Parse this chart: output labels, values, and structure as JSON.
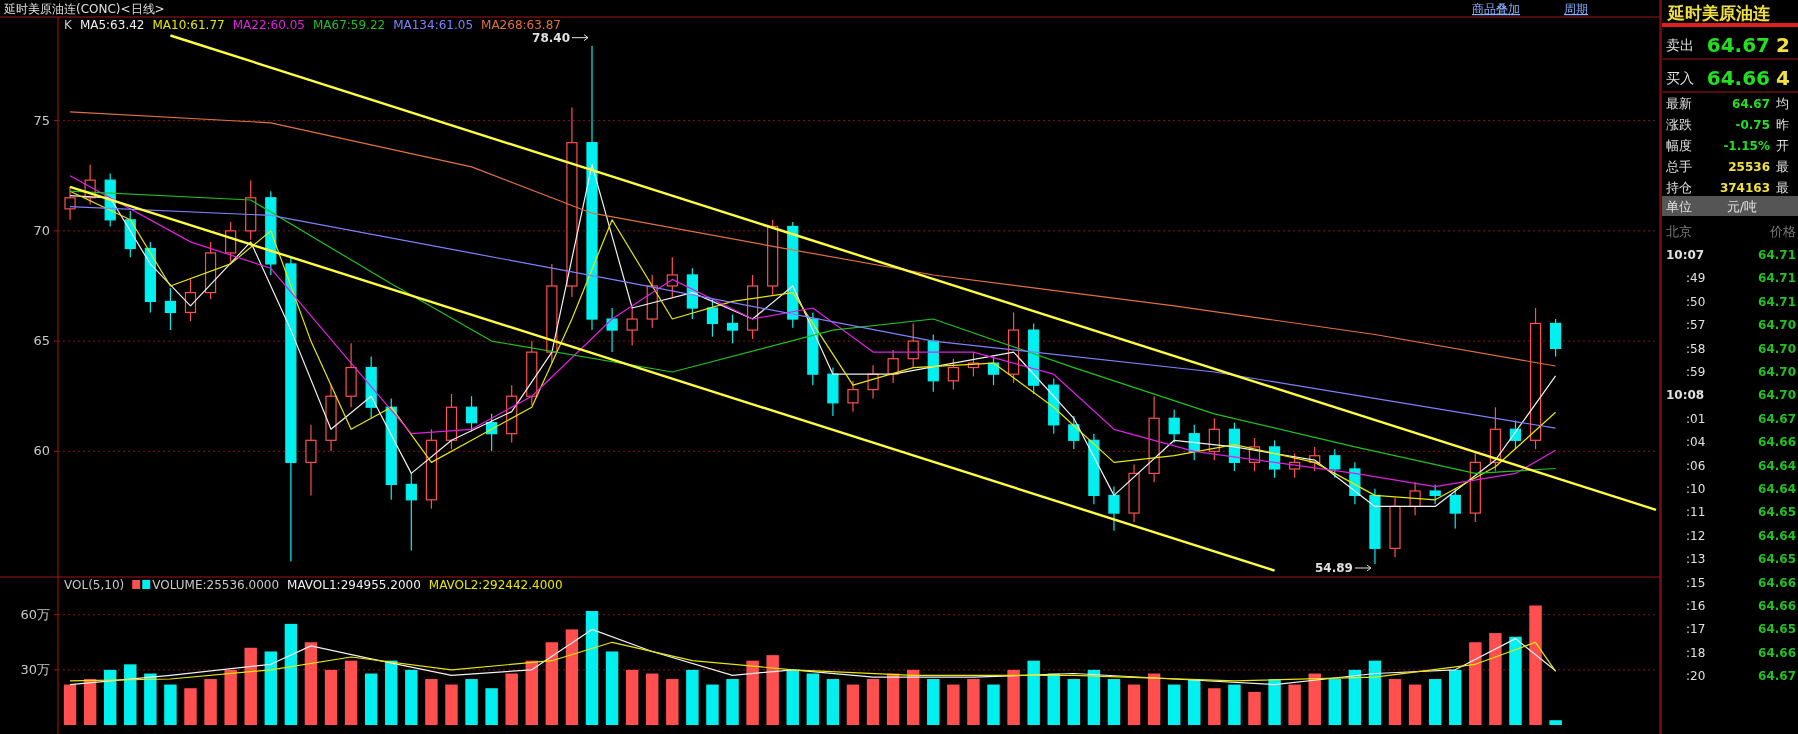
{
  "chart_data": [
    {
      "type": "candlestick",
      "title": "延时美原油连(CONC)<日线>",
      "legend_title": "K",
      "legend": "top left",
      "grid": "y",
      "categories": [
        null,
        null,
        null,
        null,
        null,
        null,
        null,
        null,
        null,
        null,
        null,
        null,
        null,
        null,
        null,
        null,
        null,
        null,
        null,
        null,
        null,
        null,
        null,
        null,
        null,
        null,
        null,
        null,
        null,
        null,
        null,
        null,
        null,
        null,
        null,
        null,
        null,
        null,
        null,
        null,
        null,
        null,
        null,
        null,
        null,
        null,
        null,
        null,
        null,
        null,
        null,
        null,
        null,
        null,
        null,
        null,
        null,
        null,
        null,
        null,
        null,
        null,
        null,
        null,
        null,
        null,
        null,
        null,
        null,
        null,
        null,
        null,
        null,
        null,
        null,
        null,
        null,
        null,
        null,
        null
      ],
      "ohlc": [
        [
          71.0,
          72.0,
          70.5,
          71.5
        ],
        [
          71.5,
          73.0,
          71.2,
          72.3
        ],
        [
          72.3,
          72.6,
          70.2,
          70.5
        ],
        [
          70.5,
          70.9,
          68.8,
          69.2
        ],
        [
          69.2,
          69.5,
          66.3,
          66.8
        ],
        [
          66.8,
          67.4,
          65.5,
          66.3
        ],
        [
          66.3,
          67.8,
          65.9,
          67.2
        ],
        [
          67.2,
          69.5,
          66.9,
          69.0
        ],
        [
          69.0,
          70.4,
          68.6,
          70.0
        ],
        [
          70.0,
          72.3,
          69.6,
          71.5
        ],
        [
          71.5,
          71.8,
          68.0,
          68.5
        ],
        [
          68.5,
          68.8,
          55.0,
          59.5
        ],
        [
          59.5,
          61.2,
          58.0,
          60.5
        ],
        [
          60.5,
          63.0,
          60.0,
          62.5
        ],
        [
          62.5,
          64.9,
          62.0,
          63.8
        ],
        [
          63.8,
          64.3,
          61.5,
          62.0
        ],
        [
          62.0,
          62.4,
          57.8,
          58.5
        ],
        [
          58.5,
          59.0,
          55.5,
          57.8
        ],
        [
          57.8,
          61.0,
          57.4,
          60.5
        ],
        [
          60.5,
          62.6,
          60.1,
          62.0
        ],
        [
          62.0,
          62.5,
          60.9,
          61.3
        ],
        [
          61.3,
          61.7,
          60.0,
          60.8
        ],
        [
          60.8,
          63.0,
          60.4,
          62.5
        ],
        [
          62.5,
          65.0,
          62.1,
          64.5
        ],
        [
          64.5,
          68.5,
          64.0,
          67.5
        ],
        [
          67.5,
          75.6,
          67.0,
          74.0
        ],
        [
          74.0,
          78.4,
          65.5,
          66.0
        ],
        [
          66.0,
          66.5,
          64.5,
          65.5
        ],
        [
          65.5,
          66.5,
          64.8,
          66.0
        ],
        [
          66.0,
          68.0,
          65.6,
          67.5
        ],
        [
          67.5,
          68.8,
          67.0,
          68.0
        ],
        [
          68.0,
          68.3,
          66.0,
          66.5
        ],
        [
          66.5,
          66.9,
          65.2,
          65.8
        ],
        [
          65.8,
          66.2,
          64.9,
          65.5
        ],
        [
          65.5,
          68.0,
          65.1,
          67.5
        ],
        [
          67.5,
          70.5,
          67.1,
          70.2
        ],
        [
          70.2,
          70.4,
          65.6,
          66.0
        ],
        [
          66.0,
          66.3,
          63.0,
          63.5
        ],
        [
          63.5,
          63.8,
          61.6,
          62.2
        ],
        [
          62.2,
          63.2,
          61.8,
          62.8
        ],
        [
          62.8,
          63.9,
          62.4,
          63.5
        ],
        [
          63.5,
          64.6,
          63.1,
          64.2
        ],
        [
          64.2,
          65.8,
          63.8,
          65.0
        ],
        [
          65.0,
          65.3,
          62.7,
          63.2
        ],
        [
          63.2,
          64.2,
          62.8,
          63.8
        ],
        [
          63.8,
          64.5,
          63.4,
          64.0
        ],
        [
          64.0,
          64.3,
          63.0,
          63.5
        ],
        [
          63.5,
          66.3,
          63.1,
          65.5
        ],
        [
          65.5,
          65.8,
          62.6,
          63.0
        ],
        [
          63.0,
          63.3,
          60.8,
          61.2
        ],
        [
          61.2,
          61.6,
          60.1,
          60.5
        ],
        [
          60.5,
          60.8,
          57.6,
          58.0
        ],
        [
          58.0,
          58.4,
          56.4,
          57.2
        ],
        [
          57.2,
          59.4,
          56.8,
          59.0
        ],
        [
          59.0,
          62.5,
          58.6,
          61.5
        ],
        [
          61.5,
          61.9,
          60.4,
          60.8
        ],
        [
          60.8,
          61.2,
          59.6,
          60.0
        ],
        [
          60.0,
          61.5,
          59.6,
          61.0
        ],
        [
          61.0,
          61.3,
          59.1,
          59.5
        ],
        [
          59.5,
          60.6,
          59.1,
          60.2
        ],
        [
          60.2,
          60.5,
          58.8,
          59.2
        ],
        [
          59.2,
          59.9,
          58.8,
          59.5
        ],
        [
          59.5,
          60.2,
          59.1,
          59.8
        ],
        [
          59.8,
          60.1,
          58.8,
          59.2
        ],
        [
          59.2,
          59.5,
          57.6,
          58.0
        ],
        [
          58.0,
          58.3,
          54.89,
          55.6
        ],
        [
          55.6,
          57.9,
          55.2,
          57.5
        ],
        [
          57.5,
          58.6,
          57.1,
          58.2
        ],
        [
          58.2,
          58.5,
          57.6,
          58.0
        ],
        [
          58.0,
          58.3,
          56.5,
          57.2
        ],
        [
          57.2,
          59.9,
          56.8,
          59.5
        ],
        [
          59.5,
          62.0,
          59.1,
          61.0
        ],
        [
          61.0,
          61.4,
          60.1,
          60.5
        ],
        [
          60.5,
          66.5,
          60.1,
          65.8
        ],
        [
          65.8,
          66.0,
          64.3,
          64.67
        ],
        null,
        null,
        null,
        null,
        null
      ],
      "series": [
        {
          "name": "MA5:63.42",
          "type": "line",
          "color": "#f0f0f0",
          "values": [
            71.6,
            null,
            71.5,
            null,
            68.5,
            null,
            66.6,
            null,
            null,
            69.5,
            null,
            65.5,
            null,
            61.0,
            null,
            62.5,
            null,
            59.0,
            null,
            60.5,
            null,
            null,
            61.8,
            null,
            64.5,
            null,
            73.0,
            null,
            66.5,
            null,
            null,
            67.2,
            null,
            null,
            66.0,
            null,
            67.5,
            null,
            63.5,
            null,
            null,
            63.5,
            null,
            null,
            64.0,
            null,
            null,
            64.5,
            null,
            null,
            61.5,
            null,
            58.0,
            null,
            null,
            60.5,
            null,
            null,
            60.2,
            null,
            null,
            null,
            59.6,
            null,
            null,
            57.5,
            null,
            null,
            57.5,
            null,
            null,
            59.6,
            null,
            null,
            63.42,
            null,
            null,
            null,
            null,
            null
          ]
        },
        {
          "name": "MA10:61.77",
          "type": "line",
          "color": "#e8e800",
          "values": [
            71.8,
            null,
            null,
            70.5,
            null,
            67.5,
            null,
            null,
            68.5,
            null,
            70.0,
            null,
            65.0,
            null,
            61.0,
            null,
            62.0,
            null,
            59.5,
            null,
            60.5,
            null,
            null,
            62.0,
            null,
            66.0,
            null,
            70.5,
            null,
            null,
            66.0,
            null,
            null,
            66.8,
            null,
            null,
            67.2,
            null,
            null,
            63.0,
            null,
            null,
            63.8,
            null,
            null,
            null,
            64.0,
            null,
            null,
            62.0,
            null,
            null,
            59.5,
            null,
            null,
            59.8,
            null,
            null,
            60.3,
            null,
            null,
            null,
            59.5,
            null,
            null,
            58.0,
            null,
            null,
            57.8,
            null,
            null,
            59.3,
            null,
            null,
            61.77,
            null,
            null,
            null,
            null,
            null
          ]
        },
        {
          "name": "MA22:60.05",
          "type": "line",
          "color": "#e020e0",
          "values": [
            72.5,
            null,
            null,
            null,
            null,
            null,
            69.5,
            null,
            null,
            null,
            68.3,
            null,
            null,
            null,
            64.0,
            null,
            null,
            60.8,
            null,
            null,
            61.0,
            null,
            null,
            62.5,
            null,
            null,
            null,
            66.0,
            null,
            null,
            67.8,
            null,
            null,
            null,
            66.0,
            null,
            null,
            66.5,
            null,
            null,
            64.5,
            null,
            null,
            null,
            null,
            64.5,
            null,
            null,
            null,
            63.5,
            null,
            null,
            61.0,
            null,
            null,
            null,
            60.0,
            null,
            null,
            null,
            59.5,
            null,
            null,
            null,
            59.0,
            null,
            null,
            null,
            58.4,
            null,
            null,
            null,
            59.0,
            null,
            60.05,
            null,
            null,
            null,
            null,
            null
          ]
        },
        {
          "name": "MA67:59.22",
          "type": "line",
          "color": "#20c020",
          "values": [
            71.8,
            null,
            null,
            null,
            null,
            null,
            null,
            null,
            null,
            71.4,
            null,
            null,
            null,
            null,
            null,
            null,
            67.6,
            null,
            null,
            null,
            null,
            65.0,
            null,
            null,
            null,
            null,
            null,
            null,
            null,
            null,
            63.6,
            null,
            null,
            null,
            null,
            null,
            null,
            null,
            65.5,
            null,
            null,
            null,
            null,
            66.0,
            null,
            null,
            null,
            null,
            null,
            null,
            63.8,
            null,
            null,
            null,
            null,
            null,
            null,
            61.7,
            null,
            null,
            null,
            null,
            null,
            null,
            60.2,
            null,
            null,
            null,
            null,
            null,
            59.0,
            null,
            null,
            null,
            59.22,
            null,
            null,
            null,
            null,
            null
          ]
        },
        {
          "name": "MA134:61.05",
          "type": "line",
          "color": "#8080ff",
          "values": [
            71.1,
            null,
            null,
            null,
            null,
            null,
            null,
            null,
            null,
            null,
            70.7,
            null,
            null,
            null,
            null,
            null,
            null,
            null,
            null,
            null,
            null,
            null,
            null,
            null,
            null,
            null,
            null,
            67.8,
            null,
            null,
            null,
            null,
            null,
            null,
            null,
            null,
            null,
            null,
            null,
            null,
            null,
            null,
            null,
            65.0,
            null,
            null,
            null,
            null,
            null,
            null,
            null,
            null,
            null,
            null,
            null,
            null,
            null,
            63.6,
            null,
            null,
            null,
            null,
            null,
            null,
            null,
            null,
            null,
            null,
            null,
            null,
            null,
            null,
            null,
            null,
            61.05,
            null,
            null,
            null,
            null,
            null
          ]
        },
        {
          "name": "MA268:63.87",
          "type": "line",
          "color": "#e07040",
          "values": [
            75.4,
            null,
            null,
            null,
            null,
            null,
            null,
            null,
            null,
            null,
            74.9,
            null,
            null,
            null,
            null,
            null,
            null,
            null,
            null,
            null,
            72.9,
            null,
            null,
            null,
            null,
            null,
            70.8,
            null,
            null,
            null,
            null,
            null,
            null,
            null,
            null,
            69.3,
            null,
            null,
            null,
            null,
            null,
            null,
            null,
            68.0,
            null,
            null,
            null,
            null,
            null,
            null,
            null,
            null,
            null,
            null,
            null,
            66.6,
            null,
            null,
            null,
            null,
            null,
            null,
            null,
            null,
            null,
            65.3,
            null,
            null,
            null,
            null,
            null,
            null,
            null,
            null,
            63.87,
            null,
            null,
            null,
            null,
            null
          ]
        },
        {
          "type": "line",
          "color": "#ffff40",
          "values": [
            null,
            null,
            null,
            null,
            null,
            78.86,
            null,
            null,
            null,
            null,
            null,
            null,
            null,
            null,
            null,
            null,
            null,
            null,
            null,
            null,
            null,
            null,
            null,
            null,
            null,
            null,
            null,
            null,
            null,
            null,
            null,
            null,
            null,
            null,
            null,
            null,
            null,
            null,
            null,
            null,
            null,
            null,
            null,
            null,
            null,
            null,
            null,
            null,
            null,
            null,
            null,
            null,
            null,
            null,
            null,
            null,
            null,
            null,
            null,
            null,
            null,
            null,
            null,
            null,
            null,
            null,
            null,
            null,
            null,
            null,
            null,
            null,
            null,
            null,
            null,
            null,
            null,
            null,
            null,
            57.35
          ]
        },
        {
          "type": "line",
          "color": "#ffff40",
          "values": [
            72.0,
            null,
            null,
            null,
            null,
            null,
            null,
            null,
            null,
            null,
            null,
            null,
            null,
            null,
            null,
            null,
            null,
            null,
            null,
            null,
            null,
            null,
            null,
            null,
            null,
            null,
            null,
            null,
            null,
            null,
            null,
            null,
            null,
            null,
            null,
            null,
            null,
            null,
            null,
            null,
            null,
            null,
            null,
            null,
            null,
            null,
            null,
            null,
            null,
            null,
            null,
            null,
            null,
            null,
            null,
            null,
            null,
            null,
            null,
            null,
            54.59,
            null,
            null,
            null,
            null,
            null,
            null,
            null,
            null,
            null,
            null,
            null,
            null,
            null,
            null,
            null,
            null,
            null,
            null,
            null
          ]
        }
      ],
      "ylim": [
        54.3,
        79.7
      ],
      "yticks": [
        60,
        65,
        70,
        75
      ],
      "annotations": [
        "78.40",
        "54.89",
        "商品叠加",
        "周期"
      ]
    },
    {
      "type": "bar",
      "legend_title": "VOL(5,10)",
      "legend": "top left",
      "grid": "y",
      "categories": [
        null,
        null,
        null,
        null,
        null,
        null,
        null,
        null,
        null,
        null,
        null,
        null,
        null,
        null,
        null,
        null,
        null,
        null,
        null,
        null,
        null,
        null,
        null,
        null,
        null,
        null,
        null,
        null,
        null,
        null,
        null,
        null,
        null,
        null,
        null,
        null,
        null,
        null,
        null,
        null,
        null,
        null,
        null,
        null,
        null,
        null,
        null,
        null,
        null,
        null,
        null,
        null,
        null,
        null,
        null,
        null,
        null,
        null,
        null,
        null,
        null,
        null,
        null,
        null,
        null,
        null,
        null,
        null,
        null,
        null,
        null,
        null,
        null,
        null,
        null,
        null,
        null,
        null,
        null,
        null
      ],
      "series": [
        {
          "name": "VOLUME:25536.0000",
          "type": "bar",
          "values": [
            22,
            25,
            30,
            33,
            28,
            22,
            20,
            25,
            30,
            42,
            40,
            55,
            45,
            30,
            35,
            28,
            35,
            30,
            25,
            22,
            25,
            20,
            28,
            35,
            45,
            52,
            62,
            40,
            30,
            28,
            25,
            30,
            22,
            25,
            35,
            38,
            30,
            28,
            25,
            22,
            25,
            28,
            30,
            25,
            22,
            25,
            22,
            30,
            35,
            28,
            25,
            30,
            25,
            22,
            28,
            22,
            25,
            20,
            22,
            18,
            25,
            22,
            28,
            25,
            30,
            35,
            25,
            22,
            25,
            30,
            45,
            50,
            48,
            65,
            2.6,
            null,
            null,
            null,
            null,
            null
          ],
          "colors": [
            "#ff4f4f",
            "#ff4f4f",
            "#00f0f0",
            "#00f0f0",
            "#00f0f0",
            "#00f0f0",
            "#ff4f4f",
            "#ff4f4f",
            "#ff4f4f",
            "#ff4f4f",
            "#00f0f0",
            "#00f0f0",
            "#ff4f4f",
            "#ff4f4f",
            "#ff4f4f",
            "#00f0f0",
            "#00f0f0",
            "#00f0f0",
            "#ff4f4f",
            "#ff4f4f",
            "#00f0f0",
            "#00f0f0",
            "#ff4f4f",
            "#ff4f4f",
            "#ff4f4f",
            "#ff4f4f",
            "#00f0f0",
            "#00f0f0",
            "#ff4f4f",
            "#ff4f4f",
            "#ff4f4f",
            "#00f0f0",
            "#00f0f0",
            "#00f0f0",
            "#ff4f4f",
            "#ff4f4f",
            "#00f0f0",
            "#00f0f0",
            "#00f0f0",
            "#ff4f4f",
            "#ff4f4f",
            "#ff4f4f",
            "#ff4f4f",
            "#00f0f0",
            "#ff4f4f",
            "#ff4f4f",
            "#00f0f0",
            "#ff4f4f",
            "#00f0f0",
            "#00f0f0",
            "#00f0f0",
            "#00f0f0",
            "#00f0f0",
            "#ff4f4f",
            "#ff4f4f",
            "#00f0f0",
            "#00f0f0",
            "#ff4f4f",
            "#00f0f0",
            "#ff4f4f",
            "#00f0f0",
            "#ff4f4f",
            "#ff4f4f",
            "#00f0f0",
            "#00f0f0",
            "#00f0f0",
            "#ff4f4f",
            "#ff4f4f",
            "#00f0f0",
            "#00f0f0",
            "#ff4f4f",
            "#ff4f4f",
            "#00f0f0",
            "#ff4f4f",
            "#00f0f0",
            null,
            null,
            null,
            null,
            null
          ]
        },
        {
          "name": "MAVOL1:294955.2000",
          "type": "line",
          "color": "#f0f0f0",
          "values": [
            22,
            null,
            null,
            null,
            null,
            27,
            null,
            null,
            null,
            null,
            33,
            null,
            43,
            null,
            null,
            36,
            null,
            null,
            null,
            27,
            null,
            null,
            null,
            30,
            null,
            null,
            52,
            null,
            null,
            40,
            null,
            null,
            null,
            27,
            null,
            null,
            30,
            null,
            null,
            null,
            26,
            null,
            null,
            null,
            null,
            26,
            null,
            null,
            null,
            null,
            28,
            null,
            null,
            null,
            null,
            25,
            null,
            null,
            null,
            null,
            22,
            null,
            null,
            null,
            null,
            28,
            null,
            null,
            null,
            30,
            null,
            null,
            47,
            null,
            29.5,
            null,
            null,
            null,
            null,
            null
          ]
        },
        {
          "name": "MAVOL2:292442.4000",
          "type": "line",
          "color": "#e8e800",
          "values": [
            24,
            null,
            null,
            null,
            null,
            25,
            null,
            null,
            null,
            null,
            30,
            null,
            null,
            null,
            37,
            null,
            null,
            null,
            null,
            30,
            null,
            null,
            null,
            null,
            35,
            null,
            null,
            45,
            null,
            null,
            null,
            35,
            null,
            null,
            null,
            null,
            30,
            null,
            null,
            null,
            null,
            null,
            27,
            null,
            null,
            null,
            null,
            null,
            null,
            null,
            27,
            null,
            null,
            null,
            null,
            null,
            null,
            null,
            24,
            null,
            null,
            null,
            null,
            null,
            null,
            26,
            null,
            null,
            null,
            null,
            33,
            null,
            null,
            45,
            29.2,
            null,
            null,
            null,
            null,
            null
          ]
        }
      ],
      "ylim": [
        0,
        80.5
      ],
      "yticks": [
        {
          "value": 60,
          "label": "60万"
        },
        {
          "value": 30,
          "label": "30万"
        }
      ]
    },
    {
      "type": "other",
      "title": "延时美原油连",
      "annotations": [
        "卖出",
        "64.67",
        "2",
        "买入",
        "64.66",
        "4",
        "最新",
        "64.67",
        "均",
        "涨跌",
        "-0.75",
        "昨",
        "幅度",
        "-1.15%",
        "开",
        "总手",
        "25536",
        "最",
        "持仓",
        "374163",
        "最",
        "单位",
        "元/吨",
        "北京",
        "价格",
        "10:07",
        "64.71",
        ":49",
        "64.71",
        ":50",
        "64.71",
        ":57",
        "64.70",
        ":58",
        "64.70",
        ":59",
        "64.70",
        "10:08",
        "64.70",
        ":01",
        "64.67",
        ":04",
        "64.66",
        ":06",
        "64.64",
        ":10",
        "64.64",
        ":11",
        "64.65",
        ":12",
        "64.64",
        ":13",
        "64.65",
        ":15",
        "64.66",
        ":16",
        "64.66",
        ":17",
        "64.65",
        ":18",
        "64.66",
        ":20",
        "64.67"
      ]
    }
  ]
}
